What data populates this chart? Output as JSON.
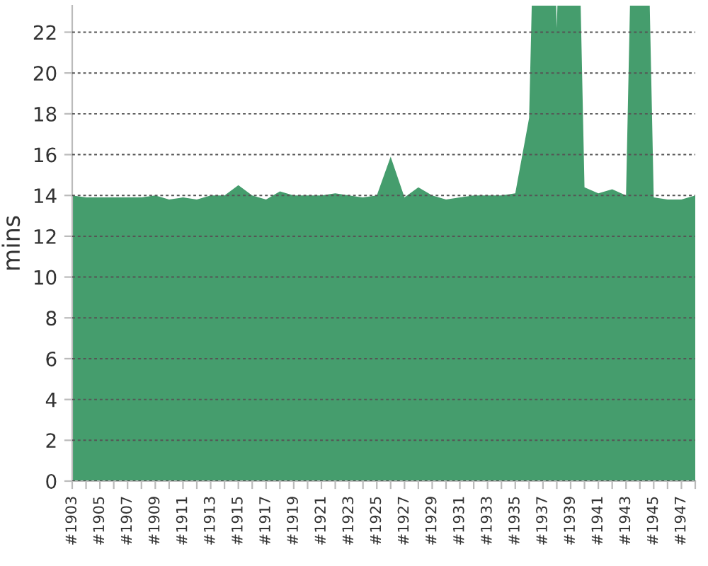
{
  "chart_data": {
    "type": "area",
    "ylabel": "mins",
    "color": "#459d6d",
    "categories": [
      "#1903",
      null,
      "#1905",
      null,
      "#1907",
      null,
      "#1909",
      null,
      "#1911",
      null,
      "#1913",
      null,
      "#1915",
      null,
      "#1917",
      null,
      "#1919",
      null,
      "#1921",
      null,
      "#1923",
      null,
      "#1925",
      null,
      "#1927",
      null,
      "#1929",
      null,
      "#1931",
      null,
      "#1933",
      null,
      "#1935",
      null,
      "#1937",
      null,
      "#1939",
      null,
      "#1941",
      null,
      "#1943",
      null,
      "#1945",
      null,
      "#1947",
      null
    ],
    "values": [
      14.0,
      13.9,
      13.9,
      13.9,
      13.9,
      13.9,
      14.0,
      13.8,
      13.9,
      13.8,
      14.0,
      14.0,
      14.5,
      14.0,
      13.8,
      14.2,
      14.0,
      14.0,
      14.0,
      14.1,
      14.0,
      13.9,
      14.0,
      15.9,
      13.9,
      14.4,
      14.0,
      13.8,
      13.9,
      14.0,
      14.0,
      14.0,
      14.1,
      17.8,
      null,
      22.2,
      null,
      14.4,
      14.1,
      14.3,
      14.0,
      null,
      13.9,
      13.8,
      13.8,
      14.0
    ],
    "ylim": [
      0,
      23.3
    ],
    "yticks": [
      0,
      2,
      4,
      6,
      8,
      10,
      12,
      14,
      16,
      18,
      20,
      22
    ],
    "grid": "y"
  }
}
